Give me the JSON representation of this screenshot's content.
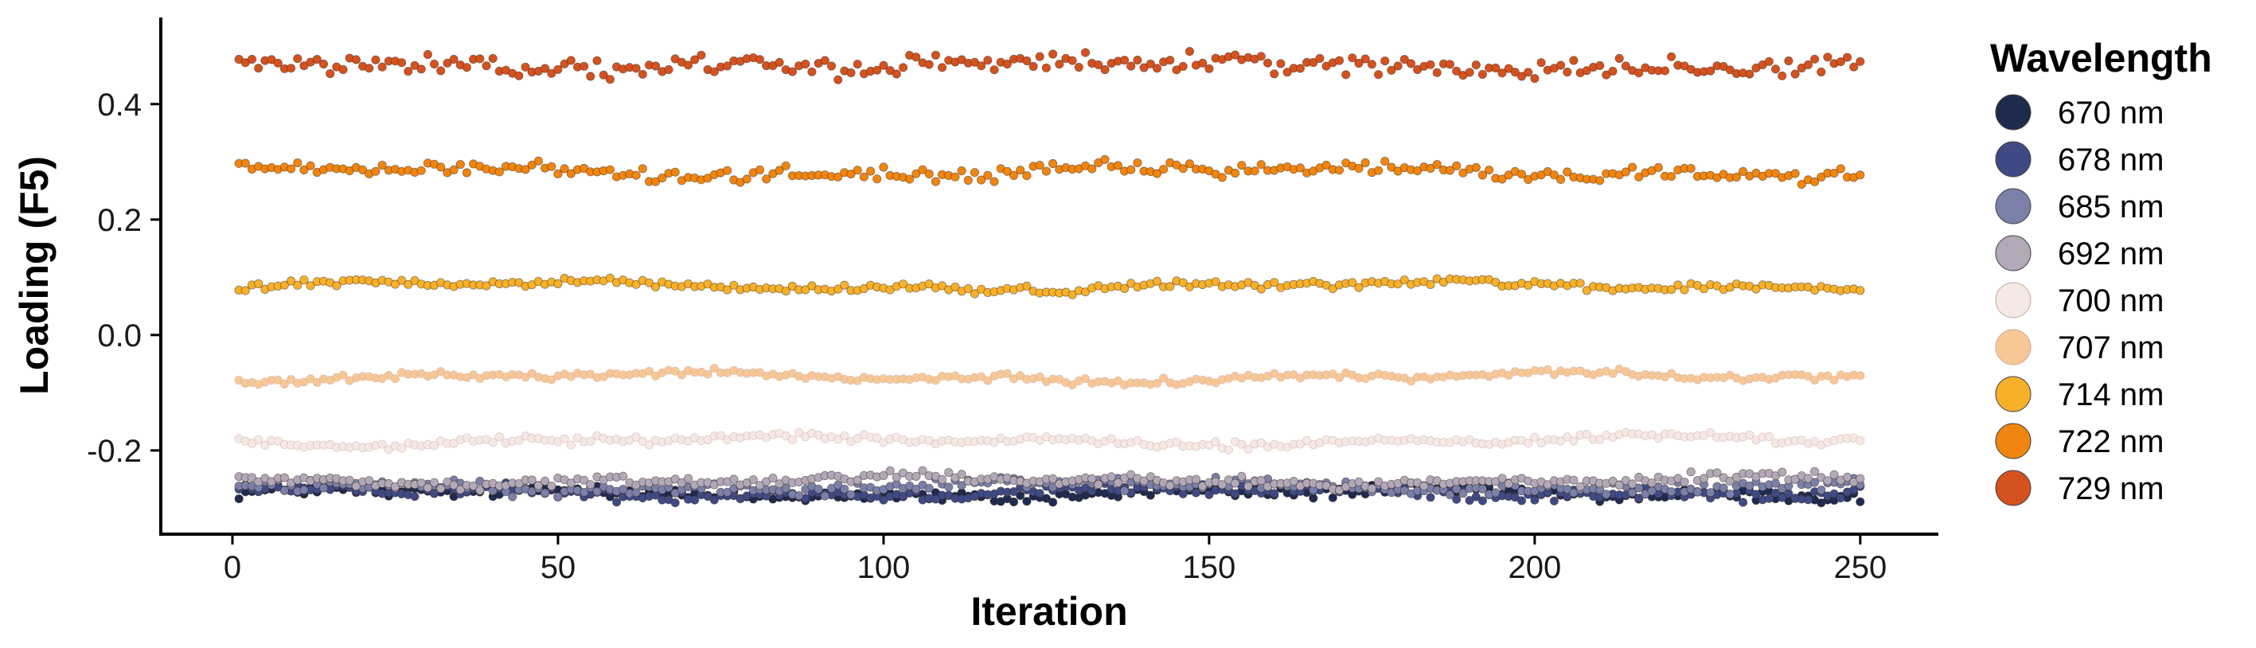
{
  "chart_data": {
    "type": "scatter",
    "xlabel": "Iteration",
    "ylabel": "Loading (F5)",
    "xlim": [
      -11,
      262
    ],
    "ylim": [
      -0.345,
      0.55
    ],
    "xticks": [
      0,
      50,
      100,
      150,
      200,
      250
    ],
    "yticks": [
      -0.2,
      0.0,
      0.2,
      0.4
    ],
    "ytick_labels": [
      "-0.2",
      "0.0",
      "0.2",
      "0.4"
    ],
    "grid": false,
    "legend": {
      "title": "Wavelength",
      "position": "right"
    },
    "n_points": 250,
    "series": [
      {
        "name": "670 nm",
        "color": "#1f2a4f",
        "mean": -0.275,
        "noise": 0.009
      },
      {
        "name": "678 nm",
        "color": "#3f4a85",
        "mean": -0.272,
        "noise": 0.009
      },
      {
        "name": "685 nm",
        "color": "#7a80a8",
        "mean": -0.262,
        "noise": 0.009
      },
      {
        "name": "692 nm",
        "color": "#b3a8b8",
        "mean": -0.252,
        "noise": 0.008
      },
      {
        "name": "700 nm",
        "color": "#f6e8e4",
        "mean": -0.183,
        "noise": 0.006
      },
      {
        "name": "707 nm",
        "color": "#f8c796",
        "mean": -0.073,
        "noise": 0.005
      },
      {
        "name": "714 nm",
        "color": "#f6b02a",
        "mean": 0.085,
        "noise": 0.006
      },
      {
        "name": "722 nm",
        "color": "#f0850f",
        "mean": 0.283,
        "noise": 0.01
      },
      {
        "name": "729 nm",
        "color": "#d4521f",
        "mean": 0.468,
        "noise": 0.015
      }
    ]
  }
}
